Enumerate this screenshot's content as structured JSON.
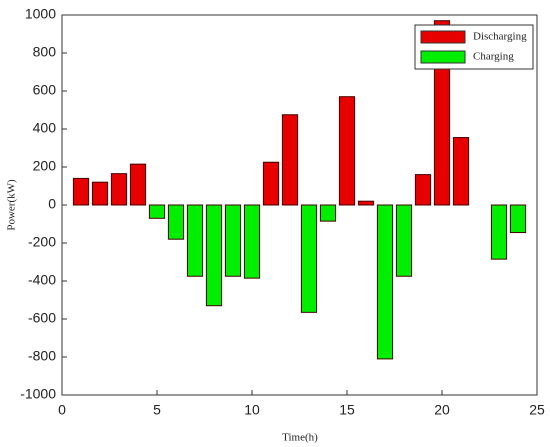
{
  "chart_data": {
    "type": "bar",
    "x_label": "Time(h)",
    "y_label": "Power(kW)",
    "x": [
      1,
      2,
      3,
      4,
      5,
      6,
      7,
      8,
      9,
      10,
      11,
      12,
      13,
      14,
      15,
      16,
      17,
      18,
      19,
      20,
      21,
      22,
      23,
      24
    ],
    "series": [
      {
        "name": "Discharging",
        "color": "#e60000",
        "values": [
          140,
          120,
          165,
          215,
          null,
          null,
          null,
          null,
          null,
          null,
          225,
          475,
          null,
          null,
          570,
          20,
          null,
          null,
          160,
          970,
          355,
          null,
          null,
          null
        ]
      },
      {
        "name": "Charging",
        "color": "#00ee00",
        "values": [
          null,
          null,
          null,
          null,
          -70,
          -180,
          -375,
          -530,
          -375,
          -385,
          null,
          null,
          -565,
          -85,
          null,
          null,
          -810,
          -375,
          null,
          null,
          null,
          null,
          -285,
          -145
        ]
      }
    ],
    "xlim": [
      0,
      25
    ],
    "xticks": [
      0,
      5,
      10,
      15,
      20,
      25
    ],
    "ylim": [
      -1000,
      1000
    ],
    "yticks": [
      -1000,
      -800,
      -600,
      -400,
      -200,
      0,
      200,
      400,
      600,
      800,
      1000
    ],
    "legend": "top-right"
  }
}
